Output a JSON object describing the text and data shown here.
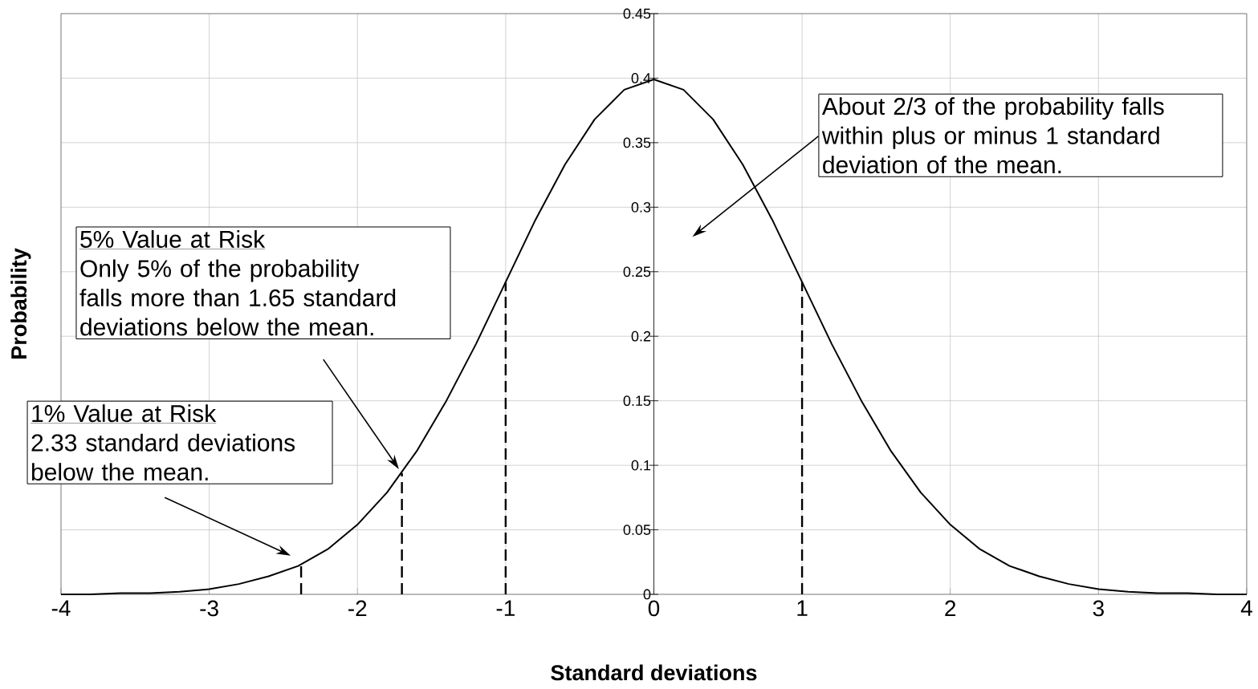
{
  "chart_data": {
    "type": "line",
    "xlabel": "Standard deviations",
    "ylabel": "Probability",
    "xlim": [
      -4,
      4
    ],
    "ylim": [
      0,
      0.45
    ],
    "xticks": [
      -4,
      -3,
      -2,
      -1,
      0,
      1,
      2,
      3,
      4
    ],
    "yticks": [
      0,
      0.05,
      0.1,
      0.15,
      0.2,
      0.25,
      0.3,
      0.35,
      0.4,
      0.45
    ],
    "grid": true,
    "marker": "none",
    "series": [
      {
        "color": "#000000",
        "line_style": "solid",
        "x": [
          -4,
          -3.8,
          -3.6,
          -3.4,
          -3.2,
          -3,
          -2.8,
          -2.6,
          -2.4,
          -2.2,
          -2,
          -1.8,
          -1.6,
          -1.4,
          -1.2,
          -1,
          -0.8,
          -0.6,
          -0.4,
          -0.2,
          0,
          0.2,
          0.4,
          0.6,
          0.8,
          1,
          1.2,
          1.4,
          1.6,
          1.8,
          2,
          2.2,
          2.4,
          2.6,
          2.8,
          3,
          3.2,
          3.4,
          3.6,
          3.8,
          4
        ],
        "values": [
          0,
          0,
          0.001,
          0.001,
          0.002,
          0.004,
          0.008,
          0.014,
          0.022,
          0.035,
          0.054,
          0.079,
          0.111,
          0.15,
          0.194,
          0.242,
          0.29,
          0.333,
          0.368,
          0.391,
          0.399,
          0.391,
          0.368,
          0.333,
          0.29,
          0.242,
          0.194,
          0.15,
          0.111,
          0.079,
          0.054,
          0.035,
          0.022,
          0.014,
          0.008,
          0.004,
          0.002,
          0.001,
          0.001,
          0,
          0
        ]
      },
      {
        "color": "#000000",
        "line_style": "dashed",
        "x": [
          -2.38,
          -2.38
        ],
        "values": [
          0,
          0.024
        ]
      },
      {
        "color": "#000000",
        "line_style": "dashed",
        "x": [
          -1.7,
          -1.7
        ],
        "values": [
          0,
          0.094
        ]
      },
      {
        "color": "#000000",
        "line_style": "dashed",
        "x": [
          -1,
          -1
        ],
        "values": [
          0,
          0.242
        ]
      },
      {
        "color": "#000000",
        "line_style": "dashed",
        "x": [
          1,
          1
        ],
        "values": [
          0,
          0.242
        ]
      }
    ],
    "annotations": [
      "About 2/3 of the probability falls within plus or minus 1 standard deviation of the mean.",
      "5% Value at Risk",
      "Only 5% of the probability falls more than 1.65 standard deviations below the mean.",
      "1% Value at Risk",
      "2.33 standard deviations below the mean."
    ]
  }
}
